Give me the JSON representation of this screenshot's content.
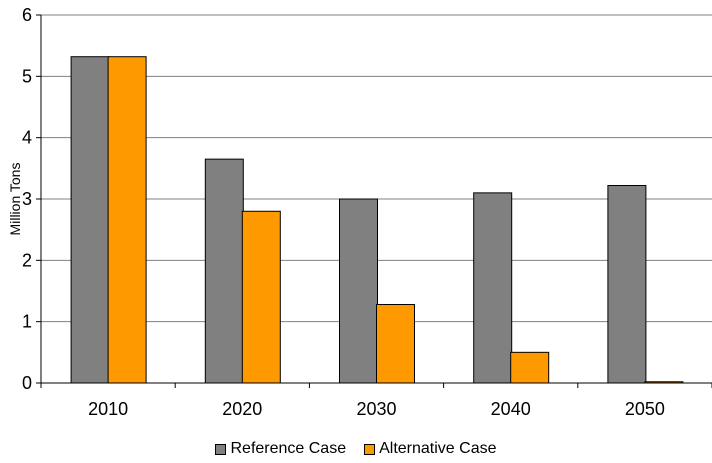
{
  "chart_data": {
    "type": "bar",
    "categories": [
      "2010",
      "2020",
      "2030",
      "2040",
      "2050"
    ],
    "series": [
      {
        "name": "Reference Case",
        "values": [
          5.32,
          3.65,
          3.0,
          3.1,
          3.22
        ],
        "color": "#808080"
      },
      {
        "name": "Alternative Case",
        "values": [
          5.32,
          2.8,
          1.28,
          0.5,
          0.02
        ],
        "color": "#FF9900"
      }
    ],
    "ylabel": "Million Tons",
    "ylim": [
      0,
      6
    ],
    "yticks": [
      "0",
      "1",
      "2",
      "3",
      "4",
      "5",
      "6"
    ],
    "grid": true,
    "legend": "bottom"
  }
}
